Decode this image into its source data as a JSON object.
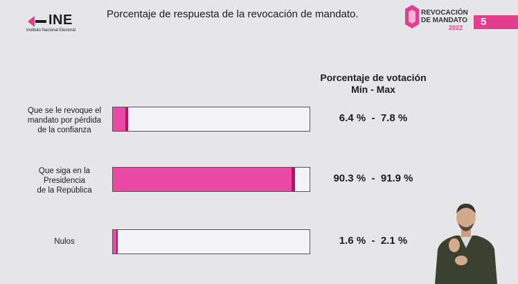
{
  "header": {
    "logo_word": "INE",
    "logo_sub": "Instituto Nacional Electoral",
    "title": "Porcentaje de respuesta de la revocación de mandato.",
    "event_line1": "REVOCACIÓN",
    "event_line2": "DE MANDATO",
    "event_year": "2022",
    "slide_number": "5"
  },
  "colors": {
    "accent": "#ea4aa6",
    "accent_dark": "#b31465"
  },
  "chart_data": {
    "type": "bar",
    "orientation": "horizontal",
    "title": "Porcentaje de respuesta de la revocación de mandato.",
    "value_header": "Porcentaje de votación",
    "value_subheader": "Min - Max",
    "xlim": [
      0,
      100
    ],
    "grid": false,
    "categories": [
      "Que se le revoque el mandato por pérdida de la confianza",
      "Que siga en la Presidencia de la República",
      "Nulos"
    ],
    "category_lines": [
      [
        "Que se le revoque el",
        "mandato por pérdida",
        "de la confianza"
      ],
      [
        "Que siga en la",
        "Presidencia",
        "de la República"
      ],
      [
        "Nulos"
      ]
    ],
    "min": [
      6.4,
      90.3,
      1.6
    ],
    "max": [
      7.8,
      91.9,
      2.1
    ],
    "range_labels": [
      "6.4 %  -  7.8 %",
      "90.3 %  -  91.9 %",
      "1.6 %  -  2.1 %"
    ]
  }
}
